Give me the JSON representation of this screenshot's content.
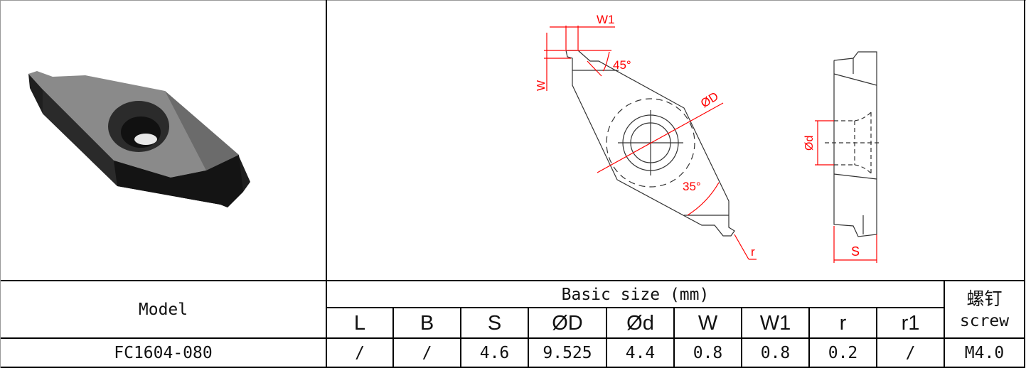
{
  "images": {
    "photo": "insert-3d-render",
    "front_view": "insert-front-drawing",
    "side_view": "insert-side-drawing"
  },
  "drawing_labels": {
    "w1": "W1",
    "w": "W",
    "angle45": "45°",
    "diameter_D": "ØD",
    "angle35": "35°",
    "r": "r",
    "diameter_d": "Ød",
    "s": "S"
  },
  "table": {
    "model_header": "Model",
    "basic_size_header": "Basic size (mm)",
    "screw_header_cn": "螺钉",
    "screw_header_en": "screw",
    "columns": [
      "L",
      "B",
      "S",
      "ØD",
      "Ød",
      "W",
      "W1",
      "r",
      "r1"
    ],
    "rows": [
      {
        "model": "FC1604-080",
        "values": [
          "/",
          "/",
          "4.6",
          "9.525",
          "4.4",
          "0.8",
          "0.8",
          "0.2",
          "/"
        ],
        "screw": "M4.0"
      }
    ]
  },
  "colors": {
    "dimension": "#ff0000",
    "insert": "#3a3a3a"
  }
}
